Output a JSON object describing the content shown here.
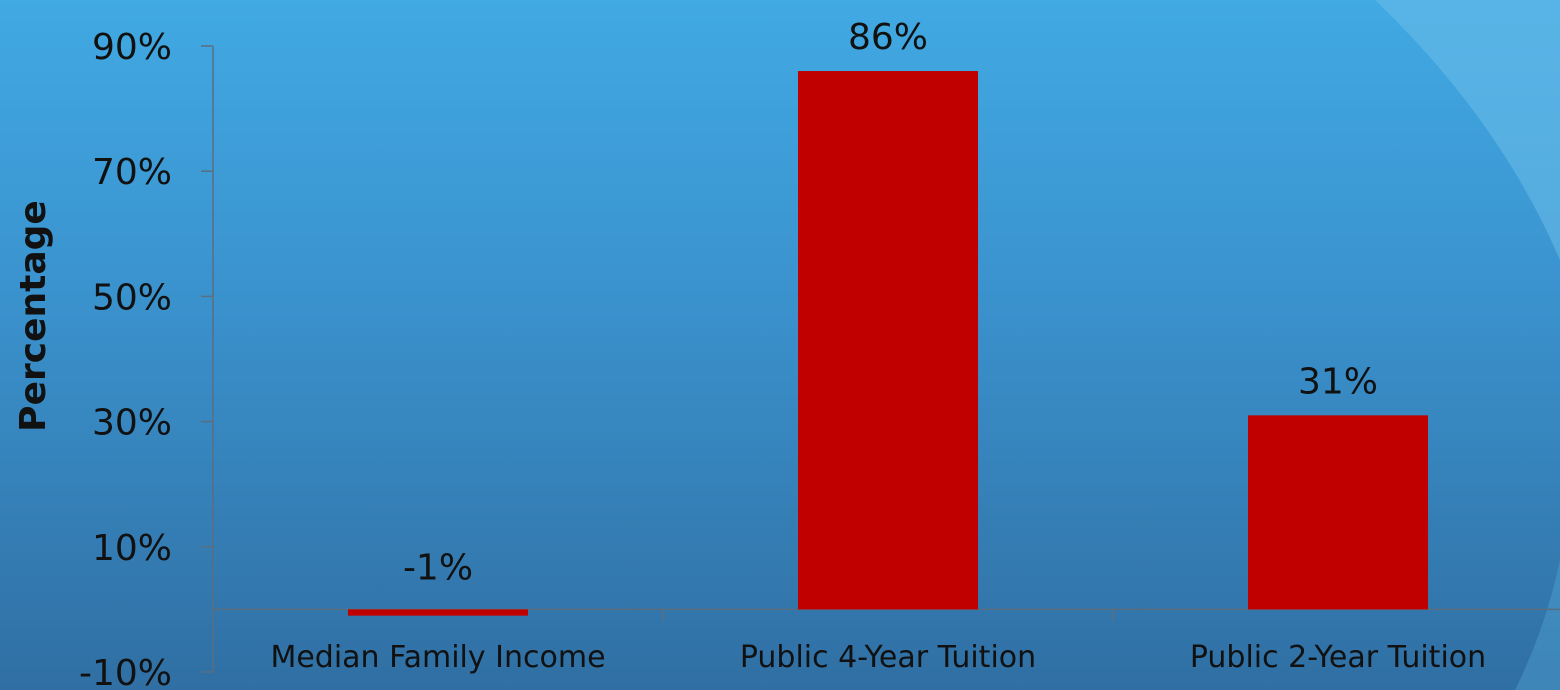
{
  "chart_data": {
    "type": "bar",
    "title": "",
    "xlabel": "",
    "ylabel": "Percentage",
    "categories": [
      "Median Family Income",
      "Public 4-Year Tuition",
      "Public 2-Year Tuition"
    ],
    "values": [
      -1,
      86,
      31
    ],
    "data_labels": [
      "-1%",
      "86%",
      "31%"
    ],
    "ylim": [
      -10,
      90
    ],
    "yticks": [
      -10,
      10,
      30,
      50,
      70,
      90
    ],
    "ytick_labels": [
      "-10%",
      "10%",
      "30%",
      "50%",
      "70%",
      "90%"
    ],
    "grid": false,
    "legend": "none",
    "colors": {
      "bar": "#c00000",
      "axis": "#5a6e80",
      "text": "#111111"
    }
  }
}
